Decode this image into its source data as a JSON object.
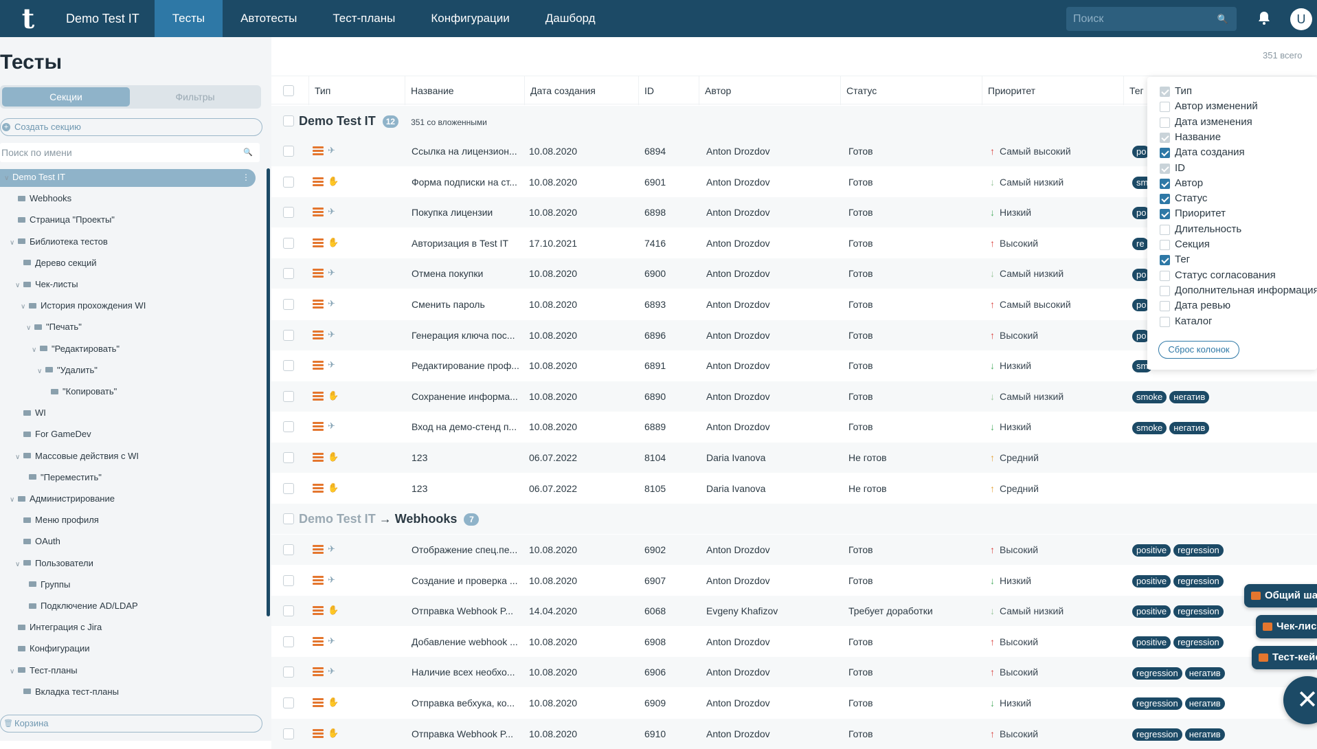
{
  "header": {
    "logo": "t",
    "project": "Demo Test IT",
    "nav": [
      "Тесты",
      "Автотесты",
      "Тест-планы",
      "Конфигурации",
      "Дашборд"
    ],
    "search_placeholder": "Поиск",
    "avatar": "U"
  },
  "sidebar": {
    "title": "Тесты",
    "seg_sections": "Секции",
    "seg_filters": "Фильтры",
    "create_section": "Создать секцию",
    "name_search_placeholder": "Поиск по имени",
    "trash": "Корзина",
    "tree": [
      {
        "label": "Demo Test IT",
        "level": 0,
        "exp": true,
        "sel": true
      },
      {
        "label": "Webhooks",
        "level": 1,
        "exp": false
      },
      {
        "label": "Страница \"Проекты\"",
        "level": 1,
        "exp": false
      },
      {
        "label": "Библиотека тестов",
        "level": 1,
        "exp": true
      },
      {
        "label": "Дерево секций",
        "level": 2,
        "exp": false
      },
      {
        "label": "Чек-листы",
        "level": 2,
        "exp": true
      },
      {
        "label": "История прохождения WI",
        "level": 3,
        "exp": true
      },
      {
        "label": "\"Печать\"",
        "level": 4,
        "exp": true
      },
      {
        "label": "\"Редактировать\"",
        "level": 5,
        "exp": true
      },
      {
        "label": "\"Удалить\"",
        "level": 6,
        "exp": true
      },
      {
        "label": "\"Копировать\"",
        "level": 7,
        "exp": false
      },
      {
        "label": "WI",
        "level": 2,
        "exp": false
      },
      {
        "label": "For GameDev",
        "level": 2,
        "exp": false
      },
      {
        "label": "Массовые действия с WI",
        "level": 2,
        "exp": true
      },
      {
        "label": "\"Переместить\"",
        "level": 3,
        "exp": false
      },
      {
        "label": "Администрирование",
        "level": 1,
        "exp": true
      },
      {
        "label": "Меню профиля",
        "level": 2,
        "exp": false
      },
      {
        "label": "OAuth",
        "level": 2,
        "exp": false
      },
      {
        "label": "Пользователи",
        "level": 2,
        "exp": true
      },
      {
        "label": "Группы",
        "level": 3,
        "exp": false
      },
      {
        "label": "Подключение AD/LDAP",
        "level": 3,
        "exp": false
      },
      {
        "label": "Интеграция с Jira",
        "level": 1,
        "exp": false
      },
      {
        "label": "Конфигурации",
        "level": 1,
        "exp": false
      },
      {
        "label": "Тест-планы",
        "level": 1,
        "exp": true
      },
      {
        "label": "Вкладка тест-планы",
        "level": 2,
        "exp": false
      }
    ]
  },
  "table": {
    "total": "351 всего",
    "columns": [
      "Тип",
      "Название",
      "Дата создания",
      "ID",
      "Автор",
      "Статус",
      "Приоритет",
      "Тег"
    ],
    "group1": {
      "name": "Demo Test IT",
      "count": "12",
      "nested": "351 со вложенными"
    },
    "group2": {
      "parent": "Demo Test IT",
      "name": "Webhooks",
      "count": "7"
    },
    "rows1": [
      {
        "kind": "auto",
        "name": "Ссылка на лицензион...",
        "date": "10.08.2020",
        "id": "6894",
        "author": "Anton Drozdov",
        "status": "Готов",
        "pri": "Самый высокий",
        "pc": "up-r",
        "tags": [
          "po"
        ]
      },
      {
        "kind": "manual",
        "name": "Форма подписки на ст...",
        "date": "10.08.2020",
        "id": "6901",
        "author": "Anton Drozdov",
        "status": "Готов",
        "pri": "Самый низкий",
        "pc": "dn-lg",
        "tags": [
          "sm"
        ]
      },
      {
        "kind": "auto",
        "name": "Покупка лицензии",
        "date": "10.08.2020",
        "id": "6898",
        "author": "Anton Drozdov",
        "status": "Готов",
        "pri": "Низкий",
        "pc": "dn-g",
        "tags": [
          "po"
        ]
      },
      {
        "kind": "manual",
        "name": "Авторизация в Test IT",
        "date": "17.10.2021",
        "id": "7416",
        "author": "Anton Drozdov",
        "status": "Готов",
        "pri": "Высокий",
        "pc": "up-r",
        "tags": [
          "re"
        ]
      },
      {
        "kind": "auto",
        "name": "Отмена покупки",
        "date": "10.08.2020",
        "id": "6900",
        "author": "Anton Drozdov",
        "status": "Готов",
        "pri": "Самый низкий",
        "pc": "dn-lg",
        "tags": [
          "po"
        ]
      },
      {
        "kind": "auto",
        "name": "Сменить пароль",
        "date": "10.08.2020",
        "id": "6893",
        "author": "Anton Drozdov",
        "status": "Готов",
        "pri": "Самый высокий",
        "pc": "up-r",
        "tags": [
          "po"
        ]
      },
      {
        "kind": "auto",
        "name": "Генерация ключа пос...",
        "date": "10.08.2020",
        "id": "6896",
        "author": "Anton Drozdov",
        "status": "Готов",
        "pri": "Высокий",
        "pc": "up-r",
        "tags": [
          "po"
        ]
      },
      {
        "kind": "auto",
        "name": "Редактирование проф...",
        "date": "10.08.2020",
        "id": "6891",
        "author": "Anton Drozdov",
        "status": "Готов",
        "pri": "Низкий",
        "pc": "dn-g",
        "tags": [
          "sm"
        ]
      },
      {
        "kind": "manual",
        "name": "Сохранение информа...",
        "date": "10.08.2020",
        "id": "6890",
        "author": "Anton Drozdov",
        "status": "Готов",
        "pri": "Самый низкий",
        "pc": "dn-lg",
        "tags": [
          "smoke",
          "негатив"
        ]
      },
      {
        "kind": "auto",
        "name": "Вход на демо-стенд п...",
        "date": "10.08.2020",
        "id": "6889",
        "author": "Anton Drozdov",
        "status": "Готов",
        "pri": "Низкий",
        "pc": "dn-g",
        "tags": [
          "smoke",
          "негатив"
        ]
      },
      {
        "kind": "manual",
        "name": "123",
        "date": "06.07.2022",
        "id": "8104",
        "author": "Daria Ivanova",
        "status": "Не готов",
        "pri": "Средний",
        "pc": "up-o",
        "tags": []
      },
      {
        "kind": "manual",
        "name": "123",
        "date": "06.07.2022",
        "id": "8105",
        "author": "Daria Ivanova",
        "status": "Не готов",
        "pri": "Средний",
        "pc": "up-o",
        "tags": []
      }
    ],
    "rows2": [
      {
        "kind": "auto",
        "name": "Отображение спец.пе...",
        "date": "10.08.2020",
        "id": "6902",
        "author": "Anton Drozdov",
        "status": "Готов",
        "pri": "Высокий",
        "pc": "up-r",
        "tags": [
          "positive",
          "regression"
        ]
      },
      {
        "kind": "auto",
        "name": "Создание и проверка ...",
        "date": "10.08.2020",
        "id": "6907",
        "author": "Anton Drozdov",
        "status": "Готов",
        "pri": "Низкий",
        "pc": "dn-g",
        "tags": [
          "positive",
          "regression"
        ]
      },
      {
        "kind": "manual",
        "name": "Отправка Webhook P...",
        "date": "14.04.2020",
        "id": "6068",
        "author": "Evgeny Khafizov",
        "status": "Требует доработки",
        "pri": "Самый низкий",
        "pc": "dn-lg",
        "tags": [
          "positive",
          "regression"
        ]
      },
      {
        "kind": "auto",
        "name": "Добавление webhook ...",
        "date": "10.08.2020",
        "id": "6908",
        "author": "Anton Drozdov",
        "status": "Готов",
        "pri": "Высокий",
        "pc": "up-r",
        "tags": [
          "positive",
          "regression"
        ]
      },
      {
        "kind": "auto",
        "name": "Наличие всех необхо...",
        "date": "10.08.2020",
        "id": "6906",
        "author": "Anton Drozdov",
        "status": "Готов",
        "pri": "Высокий",
        "pc": "up-r",
        "tags": [
          "regression",
          "негатив"
        ]
      },
      {
        "kind": "manual",
        "name": "Отправка вебхука, ко...",
        "date": "10.08.2020",
        "id": "6909",
        "author": "Anton Drozdov",
        "status": "Готов",
        "pri": "Низкий",
        "pc": "dn-g",
        "tags": [
          "regression",
          "негатив"
        ]
      },
      {
        "kind": "manual",
        "name": "Отправка Webhook P...",
        "date": "10.08.2020",
        "id": "6910",
        "author": "Anton Drozdov",
        "status": "Готов",
        "pri": "Высокий",
        "pc": "up-r",
        "tags": [
          "regression",
          "негатив"
        ]
      }
    ]
  },
  "columns_panel": {
    "reset": "Сброс колонок",
    "items": [
      {
        "label": "Тип",
        "state": "dis"
      },
      {
        "label": "Автор изменений",
        "state": ""
      },
      {
        "label": "Дата изменения",
        "state": ""
      },
      {
        "label": "Название",
        "state": "dis"
      },
      {
        "label": "Дата создания",
        "state": "ck"
      },
      {
        "label": "ID",
        "state": "dis"
      },
      {
        "label": "Автор",
        "state": "ck"
      },
      {
        "label": "Статус",
        "state": "ck"
      },
      {
        "label": "Приоритет",
        "state": "ck"
      },
      {
        "label": "Длительность",
        "state": ""
      },
      {
        "label": "Секция",
        "state": ""
      },
      {
        "label": "Тег",
        "state": "ck"
      },
      {
        "label": "Статус согласования",
        "state": ""
      },
      {
        "label": "Дополнительная информация",
        "state": ""
      },
      {
        "label": "Дата ревью",
        "state": ""
      },
      {
        "label": "Каталог",
        "state": ""
      }
    ]
  },
  "fabs": {
    "shared_steps": "Общий шаг",
    "checklist": "Чек-лист",
    "testcase": "Тест-кейс",
    "close": "✕"
  }
}
